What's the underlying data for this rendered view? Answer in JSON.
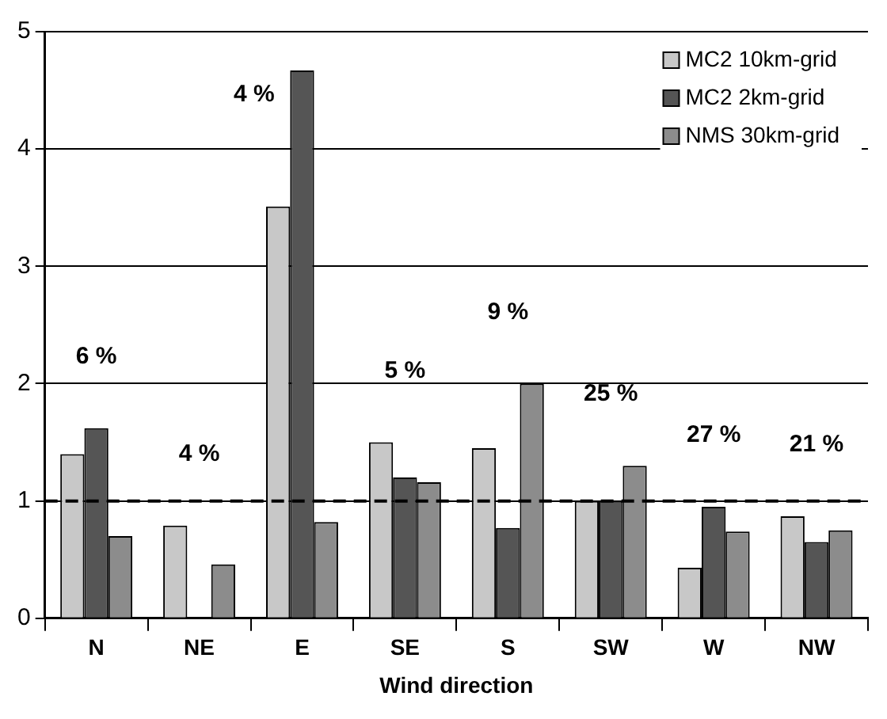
{
  "chart_data": {
    "type": "bar",
    "xlabel": "Wind direction",
    "categories": [
      "N",
      "NE",
      "E",
      "SE",
      "S",
      "SW",
      "W",
      "NW"
    ],
    "series": [
      {
        "name": "MC2 10km-grid",
        "color": "#c8c8c8",
        "values": [
          1.4,
          0.79,
          3.51,
          1.5,
          1.45,
          1.0,
          0.43,
          0.87
        ]
      },
      {
        "name": "MC2 2km-grid",
        "color": "#555555",
        "values": [
          1.62,
          null,
          4.67,
          1.2,
          0.77,
          1.0,
          0.95,
          0.65
        ]
      },
      {
        "name": "NMS 30km-grid",
        "color": "#8c8c8c",
        "values": [
          0.7,
          0.46,
          0.82,
          1.16,
          2.0,
          1.3,
          0.74,
          0.75
        ]
      }
    ],
    "ylim": [
      0,
      5
    ],
    "yticks": [
      0,
      1,
      2,
      3,
      4,
      5
    ],
    "grid": "y",
    "legend": "top right",
    "ref_lines": [
      {
        "axis": "y",
        "value": 1,
        "line_style": "dashed",
        "color": "#000000"
      }
    ],
    "annotations": [
      "6 %",
      "4 %",
      "4 %",
      "5 %",
      "9 %",
      "25 %",
      "27 %",
      "21 %"
    ]
  }
}
